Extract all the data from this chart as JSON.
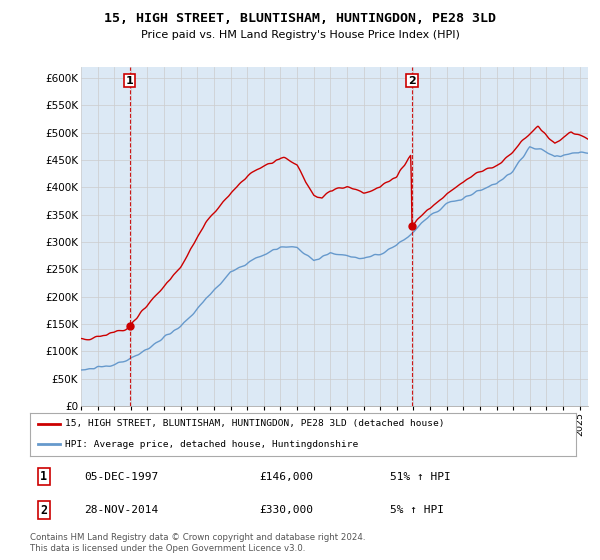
{
  "title": "15, HIGH STREET, BLUNTISHAM, HUNTINGDON, PE28 3LD",
  "subtitle": "Price paid vs. HM Land Registry's House Price Index (HPI)",
  "ylim": [
    0,
    620000
  ],
  "yticks": [
    0,
    50000,
    100000,
    150000,
    200000,
    250000,
    300000,
    350000,
    400000,
    450000,
    500000,
    550000,
    600000
  ],
  "sale1_date_label": "05-DEC-1997",
  "sale1_price": 146000,
  "sale1_pct": "51%",
  "sale2_date_label": "28-NOV-2014",
  "sale2_price": 330000,
  "sale2_pct": "5%",
  "sale1_x": 1997.92,
  "sale2_x": 2014.91,
  "red_color": "#cc0000",
  "blue_color": "#6699cc",
  "blue_fill": "#dce9f5",
  "dashed_red": "#cc0000",
  "legend_label_red": "15, HIGH STREET, BLUNTISHAM, HUNTINGDON, PE28 3LD (detached house)",
  "legend_label_blue": "HPI: Average price, detached house, Huntingdonshire",
  "footer": "Contains HM Land Registry data © Crown copyright and database right 2024.\nThis data is licensed under the Open Government Licence v3.0.",
  "xmin": 1995,
  "xmax": 2025.5,
  "background_color": "#ffffff",
  "grid_color": "#cccccc"
}
